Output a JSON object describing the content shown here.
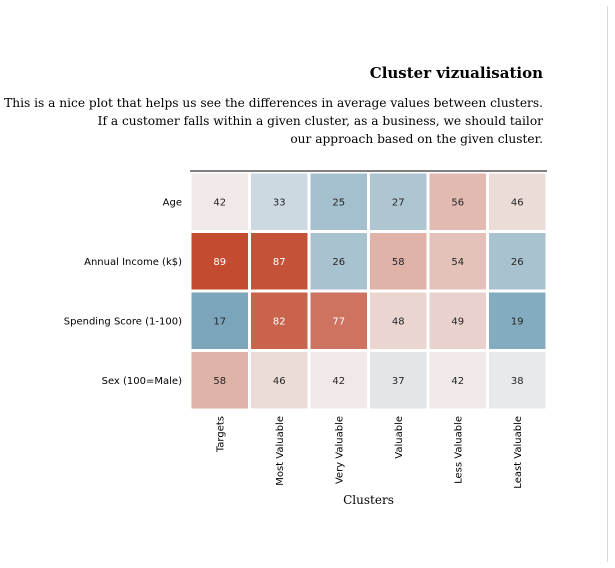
{
  "chart_data": {
    "type": "heatmap",
    "title": "Cluster vizualisation",
    "subtitle_lines": [
      "This is a nice plot that helps us see the differences  in average values between clusters.",
      "If a customer falls within a given cluster, as a business, we should tailor",
      "our approach based on the given cluster."
    ],
    "xlabel": "Clusters",
    "ylabel": "",
    "x_categories": [
      "Targets",
      "Most Valuable",
      "Very Valuable",
      "Valuable",
      "Less Valuable",
      "Least Valuable"
    ],
    "y_categories": [
      "Age",
      "Annual Income (k$)",
      "Spending Score (1-100)",
      "Sex (100=Male)"
    ],
    "values": [
      [
        42,
        33,
        25,
        27,
        56,
        46
      ],
      [
        89,
        87,
        26,
        58,
        54,
        26
      ],
      [
        17,
        82,
        77,
        48,
        49,
        19
      ],
      [
        58,
        46,
        42,
        37,
        42,
        38
      ]
    ],
    "colormap": {
      "low": "#7aa5bb",
      "center": "#f2f0f0",
      "high": "#c24b30",
      "center_value": 40
    },
    "colorbar": false,
    "grid": false
  }
}
